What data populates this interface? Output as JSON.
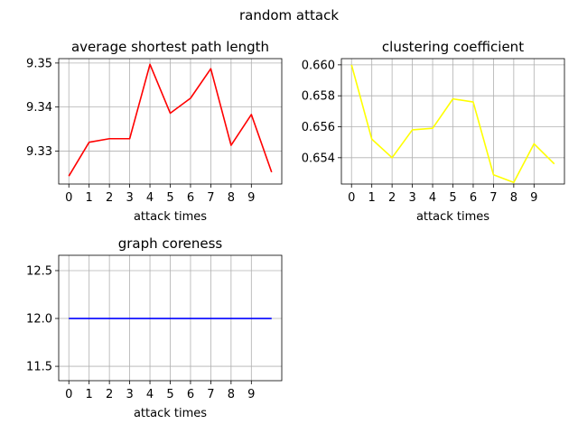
{
  "figure": {
    "suptitle": "random attack"
  },
  "chart_data": [
    {
      "type": "line",
      "title": "average shortest path length",
      "xlabel": "attack times",
      "ylabel": "",
      "xticks": [
        0,
        1,
        2,
        3,
        4,
        5,
        6,
        7,
        8,
        9
      ],
      "xlim": [
        -0.5,
        10.5
      ],
      "ylim": [
        9.3225,
        9.351
      ],
      "yticks": [
        9.33,
        9.34,
        9.35
      ],
      "ytick_labels": [
        "9.33",
        "9.34",
        "9.35"
      ],
      "grid": true,
      "series": [
        {
          "color": "#ff0000",
          "x": [
            0,
            1,
            2,
            3,
            4,
            5,
            6,
            7,
            8,
            9,
            10
          ],
          "y": [
            9.3243,
            9.332,
            9.3328,
            9.3328,
            9.3497,
            9.3386,
            9.342,
            9.3487,
            9.3313,
            9.3383,
            9.3252
          ]
        }
      ]
    },
    {
      "type": "line",
      "title": "clustering coefficient",
      "xlabel": "attack times",
      "ylabel": "",
      "xticks": [
        0,
        1,
        2,
        3,
        4,
        5,
        6,
        7,
        8,
        9
      ],
      "xlim": [
        -0.5,
        10.5
      ],
      "ylim": [
        0.6523,
        0.6604
      ],
      "yticks": [
        0.654,
        0.656,
        0.658,
        0.66
      ],
      "ytick_labels": [
        "0.654",
        "0.656",
        "0.658",
        "0.660"
      ],
      "grid": true,
      "series": [
        {
          "color": "#ffff00",
          "x": [
            0,
            1,
            2,
            3,
            4,
            5,
            6,
            7,
            8,
            9,
            10
          ],
          "y": [
            0.66,
            0.6552,
            0.654,
            0.6558,
            0.6559,
            0.6578,
            0.6576,
            0.6529,
            0.6524,
            0.6549,
            0.6536
          ]
        }
      ]
    },
    {
      "type": "line",
      "title": "graph coreness",
      "xlabel": "attack times",
      "ylabel": "",
      "xticks": [
        0,
        1,
        2,
        3,
        4,
        5,
        6,
        7,
        8,
        9
      ],
      "xlim": [
        -0.5,
        10.5
      ],
      "ylim": [
        11.35,
        12.66
      ],
      "yticks": [
        11.5,
        12.0,
        12.5
      ],
      "ytick_labels": [
        "11.5",
        "12.0",
        "12.5"
      ],
      "grid": true,
      "series": [
        {
          "color": "#0000ff",
          "x": [
            0,
            1,
            2,
            3,
            4,
            5,
            6,
            7,
            8,
            9,
            10
          ],
          "y": [
            12,
            12,
            12,
            12,
            12,
            12,
            12,
            12,
            12,
            12,
            12
          ]
        }
      ]
    }
  ]
}
